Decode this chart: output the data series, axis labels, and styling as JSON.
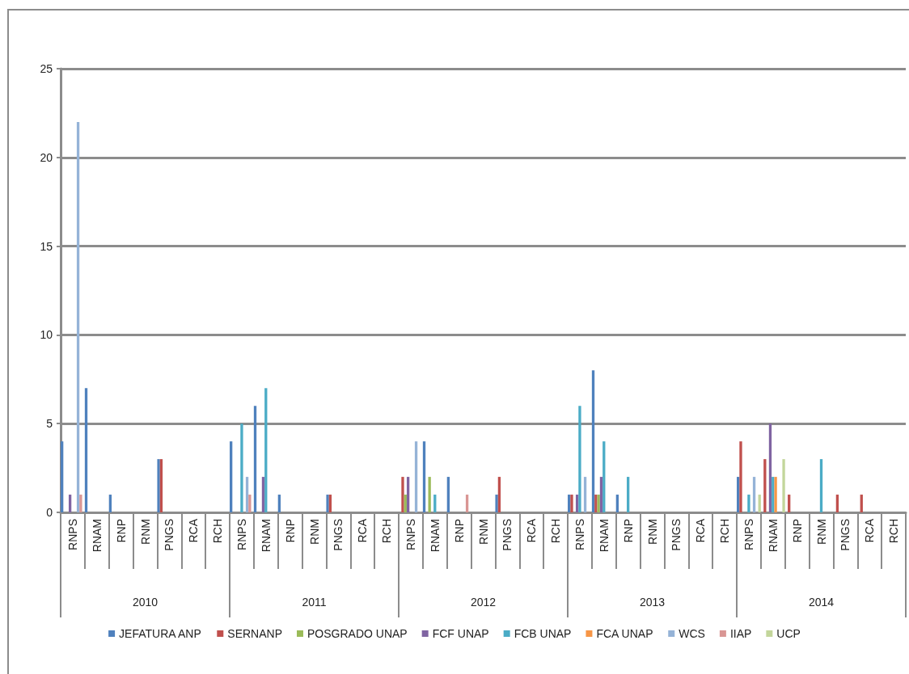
{
  "chart_data": {
    "type": "bar",
    "categories": [
      "RNPS",
      "RNAM",
      "RNP",
      "RNM",
      "PNGS",
      "RCA",
      "RCH",
      "RNPS",
      "RNAM",
      "RNP",
      "RNM",
      "PNGS",
      "RCA",
      "RCH",
      "RNPS",
      "RNAM",
      "RNP",
      "RNM",
      "PNGS",
      "RCA",
      "RCH",
      "RNPS",
      "RNAM",
      "RNP",
      "RNM",
      "PNGS",
      "RCA",
      "RCH",
      "RNPS",
      "RNAM",
      "RNP",
      "RNM",
      "PNGS",
      "RCA",
      "RCH"
    ],
    "annotations": [
      "2010",
      "2011",
      "2012",
      "2013",
      "2014"
    ],
    "series": [
      {
        "name": "JEFATURA ANP",
        "color": "#4f81bd",
        "values": [
          4,
          7,
          1,
          0,
          3,
          0,
          0,
          4,
          6,
          1,
          0,
          1,
          0,
          0,
          0,
          4,
          2,
          0,
          1,
          0,
          0,
          1,
          8,
          1,
          0,
          0,
          0,
          0,
          2,
          0,
          0,
          0,
          0,
          0,
          0
        ]
      },
      {
        "name": "SERNANP",
        "color": "#c0504d",
        "values": [
          0,
          0,
          0,
          0,
          3,
          0,
          0,
          0,
          0,
          0,
          0,
          1,
          0,
          0,
          2,
          0,
          0,
          0,
          2,
          0,
          0,
          1,
          1,
          0,
          0,
          0,
          0,
          0,
          4,
          3,
          1,
          0,
          1,
          1,
          0
        ]
      },
      {
        "name": "POSGRADO UNAP",
        "color": "#9bbb59",
        "values": [
          0,
          0,
          0,
          0,
          0,
          0,
          0,
          0,
          0,
          0,
          0,
          0,
          0,
          0,
          1,
          2,
          0,
          0,
          0,
          0,
          0,
          0,
          1,
          0,
          0,
          0,
          0,
          0,
          0,
          0,
          0,
          0,
          0,
          0,
          0
        ]
      },
      {
        "name": "FCF UNAP",
        "color": "#8064a2",
        "values": [
          1,
          0,
          0,
          0,
          0,
          0,
          0,
          0,
          2,
          0,
          0,
          0,
          0,
          0,
          2,
          0,
          0,
          0,
          0,
          0,
          0,
          1,
          2,
          0,
          0,
          0,
          0,
          0,
          0,
          5,
          0,
          0,
          0,
          0,
          0
        ]
      },
      {
        "name": "FCB UNAP",
        "color": "#4bacc6",
        "values": [
          0,
          0,
          0,
          0,
          0,
          0,
          0,
          5,
          7,
          0,
          0,
          0,
          0,
          0,
          0,
          1,
          0,
          0,
          0,
          0,
          0,
          6,
          4,
          2,
          0,
          0,
          0,
          0,
          1,
          2,
          0,
          3,
          0,
          0,
          0
        ]
      },
      {
        "name": "FCA UNAP",
        "color": "#f79646",
        "values": [
          0,
          0,
          0,
          0,
          0,
          0,
          0,
          0,
          0,
          0,
          0,
          0,
          0,
          0,
          0,
          0,
          0,
          0,
          0,
          0,
          0,
          0,
          0,
          0,
          0,
          0,
          0,
          0,
          0,
          2,
          0,
          0,
          0,
          0,
          0
        ]
      },
      {
        "name": "WCS",
        "color": "#95b3d7",
        "values": [
          22,
          0,
          0,
          0,
          0,
          0,
          0,
          2,
          0,
          0,
          0,
          0,
          0,
          0,
          4,
          0,
          0,
          0,
          0,
          0,
          0,
          2,
          0,
          0,
          0,
          0,
          0,
          0,
          2,
          0,
          0,
          0,
          0,
          0,
          0
        ]
      },
      {
        "name": "IIAP",
        "color": "#d99694",
        "values": [
          1,
          0,
          0,
          0,
          0,
          0,
          0,
          1,
          0,
          0,
          0,
          0,
          0,
          0,
          0,
          0,
          1,
          0,
          0,
          0,
          0,
          0,
          0,
          0,
          0,
          0,
          0,
          0,
          0,
          0,
          0,
          0,
          0,
          0,
          0
        ]
      },
      {
        "name": "UCP",
        "color": "#c3d69b",
        "values": [
          0,
          0,
          0,
          0,
          0,
          0,
          0,
          0,
          0,
          0,
          0,
          0,
          0,
          0,
          0,
          0,
          0,
          0,
          0,
          0,
          0,
          0,
          0,
          0,
          0,
          0,
          0,
          0,
          1,
          3,
          0,
          0,
          0,
          0,
          0
        ]
      }
    ],
    "ylim": [
      0,
      25
    ],
    "yticks": [
      0,
      5,
      10,
      15,
      20,
      25
    ],
    "grid": "y",
    "legend": "bottom"
  }
}
